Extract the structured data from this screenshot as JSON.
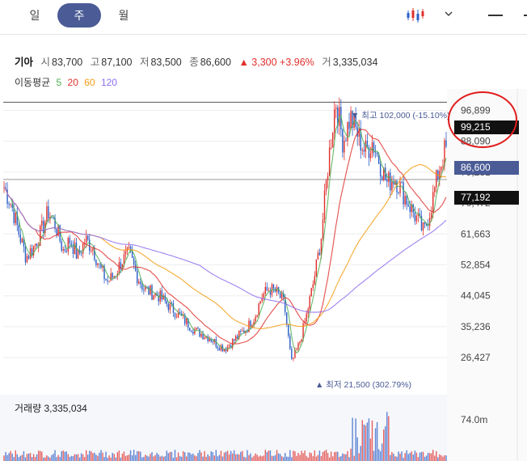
{
  "tabs": [
    {
      "label": "일",
      "active": false
    },
    {
      "label": "주",
      "active": true
    },
    {
      "label": "월",
      "active": false
    }
  ],
  "quote": {
    "name": "기아",
    "open_label": "시",
    "open": "83,700",
    "high_label": "고",
    "high": "87,100",
    "low_label": "저",
    "low": "83,500",
    "close_label": "종",
    "close": "86,600",
    "change": "▲ 3,300 +3.96%",
    "volume_label": "거",
    "volume": "3,335,034"
  },
  "moving_average": {
    "label": "이동평균",
    "periods": [
      {
        "label": "5",
        "color": "#4caf50"
      },
      {
        "label": "20",
        "color": "#e0302c"
      },
      {
        "label": "60",
        "color": "#f39c12"
      },
      {
        "label": "120",
        "color": "#8e6cf0"
      }
    ]
  },
  "annotations": {
    "high": "▼ 최고 102,000 (-15.10%)",
    "low": "▲ 최저 21,500 (302.79%)"
  },
  "price_tags": {
    "marked": "99,215",
    "current": "86,600",
    "crosshair": "77,192"
  },
  "volume": {
    "title": "거래량 3,335,034",
    "axis_label": "74.0m"
  },
  "chart_data": {
    "type": "candlestick",
    "y_ticks": [
      "96,899",
      "88,090",
      "79,281",
      "70,472",
      "61,663",
      "52,854",
      "44,045",
      "35,236",
      "26,427"
    ],
    "y_tick_values": [
      96899,
      88090,
      79281,
      70472,
      61663,
      52854,
      44045,
      35236,
      26427
    ],
    "ylim": [
      21500,
      102000
    ],
    "series_path": [
      75000,
      70000,
      62000,
      55000,
      58000,
      62000,
      68000,
      64000,
      57000,
      60000,
      55000,
      60000,
      58000,
      52000,
      48000,
      50000,
      54000,
      56000,
      50000,
      46000,
      45000,
      44000,
      42000,
      40000,
      38000,
      36000,
      34000,
      33000,
      32000,
      30000,
      29000,
      31000,
      33000,
      35000,
      38000,
      44000,
      46000,
      45000,
      42000,
      25000,
      30000,
      38000,
      48000,
      60000,
      82000,
      100000,
      88000,
      95000,
      90000,
      85000,
      88000,
      82000,
      76000,
      78000,
      74000,
      70000,
      66000,
      62000,
      70000,
      80000,
      86600
    ],
    "horizontal_lines": [
      99215,
      77192
    ],
    "volume_ylim_label": "74.0m"
  },
  "colors": {
    "up": "#e0302c",
    "down": "#2b5fc7",
    "accent": "#4a5b96",
    "circle": "#e11c1c"
  }
}
